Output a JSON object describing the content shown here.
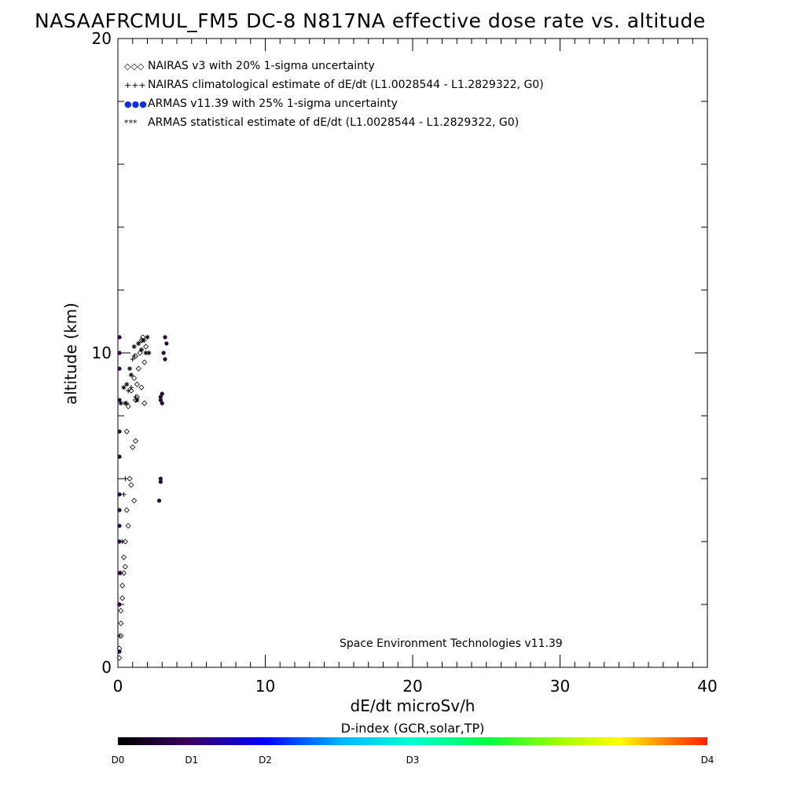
{
  "title": "NASAAFRCMUL_FM5 DC-8   N817NA effective dose rate vs. altitude",
  "credit": "Space Environment Technologies v11.39",
  "legend": [
    {
      "symbol": "◇◇◇",
      "label": "NAIRAS v3 with 20% 1-sigma uncertainty",
      "color": "#000000"
    },
    {
      "symbol": "+++",
      "label": "NAIRAS climatological estimate of dE/dt (L1.0028544 - L1.2829322, G0)",
      "color": "#000000"
    },
    {
      "symbol": "●●●",
      "label": "ARMAS v11.39 with 25% 1-sigma uncertainty",
      "color": "#1030e0"
    },
    {
      "symbol": "***",
      "label": "ARMAS statistical estimate of dE/dt (L1.0028544 - L1.2829322, G0)",
      "color": "#000000"
    }
  ],
  "colorbar": {
    "title": "D-index (GCR,solar,TP)",
    "ticks": [
      {
        "label": "D0",
        "value": 0
      },
      {
        "label": "D1",
        "value": 5
      },
      {
        "label": "D2",
        "value": 10
      },
      {
        "label": "D3",
        "value": 20
      },
      {
        "label": "D4",
        "value": 40
      }
    ]
  },
  "chart_data": {
    "type": "scatter",
    "xlabel": "dE/dt microSv/h",
    "ylabel": "altitude (km)",
    "xlim": [
      0,
      40
    ],
    "ylim": [
      0,
      20
    ],
    "xticks": [
      0,
      10,
      20,
      30,
      40
    ],
    "yticks": [
      0,
      10,
      20
    ],
    "grid": false,
    "legend_position": "top-left",
    "series": [
      {
        "name": "NAIRAS v3 with 20% 1-sigma uncertainty",
        "marker": "diamond",
        "x": [
          1.7,
          1.9,
          1.5,
          1.2,
          1.8,
          1.4,
          1.1,
          1.6,
          0.9,
          1.3,
          1.2,
          0.7,
          0.6,
          1.0,
          0.8,
          0.9,
          1.1,
          0.6,
          0.7,
          0.5,
          0.4,
          0.5,
          0.4,
          0.3,
          0.3,
          0.2,
          0.2,
          0.2,
          0.1,
          0.1,
          1.6,
          1.3,
          1.8,
          1.2
        ],
        "y": [
          10.5,
          10.2,
          10.0,
          9.9,
          9.7,
          9.5,
          9.2,
          8.9,
          8.8,
          8.6,
          8.5,
          8.3,
          7.5,
          7.0,
          6.0,
          5.8,
          5.3,
          5.0,
          4.5,
          4.0,
          3.5,
          3.2,
          3.0,
          2.6,
          2.2,
          1.8,
          1.4,
          1.0,
          0.6,
          0.3,
          10.4,
          9.0,
          8.4,
          7.2
        ]
      },
      {
        "name": "NAIRAS climatological estimate of dE/dt (L1.0028544 - L1.2829322, G0)",
        "marker": "plus",
        "x": [
          1.8,
          1.6,
          1.1,
          0.9,
          1.2,
          0.6,
          0.5,
          0.4,
          0.3,
          0.2,
          0.1,
          0.1,
          1.4,
          1.0,
          0.7
        ],
        "y": [
          10.4,
          10.1,
          9.9,
          8.9,
          8.6,
          8.4,
          6.0,
          5.5,
          4.0,
          3.0,
          2.0,
          1.0,
          10.3,
          9.8,
          8.8
        ]
      },
      {
        "name": "ARMAS v11.39 with 25% 1-sigma uncertainty",
        "marker": "dot",
        "x": [
          3.2,
          3.3,
          3.1,
          3.2,
          3.0,
          2.9,
          3.0,
          2.9,
          2.9,
          2.8,
          2.9,
          0.0,
          0.0,
          0.0,
          0.0,
          0.0,
          0.0,
          0.0,
          0.0,
          0.0,
          0.0,
          0.0,
          0.0,
          0.0
        ],
        "y": [
          10.5,
          10.3,
          10.0,
          9.8,
          8.7,
          8.5,
          8.4,
          6.0,
          5.9,
          5.3,
          8.6,
          10.5,
          10.0,
          9.5,
          8.5,
          7.5,
          6.7,
          5.5,
          5.0,
          4.5,
          4.0,
          3.0,
          2.0,
          0.5
        ]
      },
      {
        "name": "ARMAS statistical estimate of dE/dt (L1.0028544 - L1.2829322, G0)",
        "marker": "asterisk",
        "x": [
          2.0,
          1.7,
          1.4,
          1.1,
          2.1,
          1.9,
          0.8,
          0.6,
          0.4,
          1.3,
          0.5,
          0.2,
          1.6,
          0.9
        ],
        "y": [
          10.5,
          10.4,
          10.3,
          10.2,
          10.0,
          10.0,
          9.5,
          9.0,
          8.9,
          8.5,
          8.4,
          8.4,
          10.1,
          9.3
        ]
      }
    ]
  }
}
